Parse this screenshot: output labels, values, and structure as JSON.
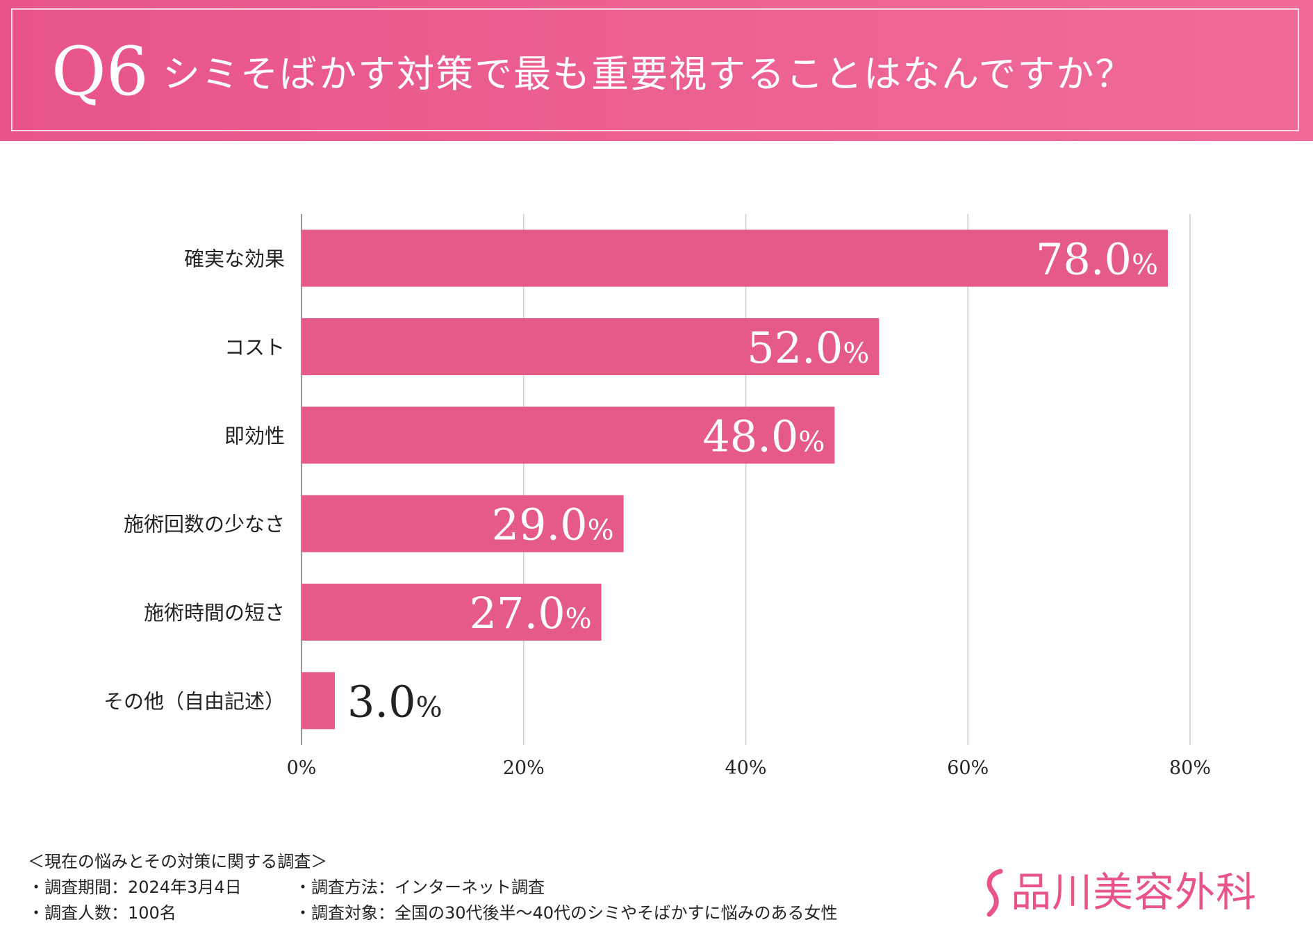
{
  "header": {
    "question_number": "Q6",
    "question_text": "シミそばかす対策で最も重要視することはなんですか？"
  },
  "colors": {
    "accent": "#e8548a",
    "bar": "#e65a88",
    "text": "#222222",
    "grid": "#cccccc"
  },
  "chart_data": {
    "type": "bar",
    "orientation": "horizontal",
    "title": "シミそばかす対策で最も重要視することはなんですか？",
    "categories": [
      "確実な効果",
      "コスト",
      "即効性",
      "施術回数の少なさ",
      "施術時間の短さ",
      "その他（自由記述）"
    ],
    "values": [
      78.0,
      52.0,
      48.0,
      29.0,
      27.0,
      3.0
    ],
    "value_labels": [
      "78.0",
      "52.0",
      "48.0",
      "29.0",
      "27.0",
      "3.0"
    ],
    "value_unit": "%",
    "xlim": [
      0,
      80
    ],
    "xticks": [
      "0%",
      "20%",
      "40%",
      "60%",
      "80%"
    ],
    "xlabel": "",
    "ylabel": "",
    "grid": true,
    "legend": "none"
  },
  "footer": {
    "survey_title": "＜現在の悩みとその対策に関する調査＞",
    "period": "・調査期間：2024年3月4日",
    "method": "・調査方法：インターネット調査",
    "sample": "・調査人数：100名",
    "target": "・調査対象：全国の30代後半〜40代のシミやそばかすに悩みのある女性"
  },
  "brand": {
    "name": "品川美容外科",
    "logo_icon": "s-curve-logo-icon"
  }
}
